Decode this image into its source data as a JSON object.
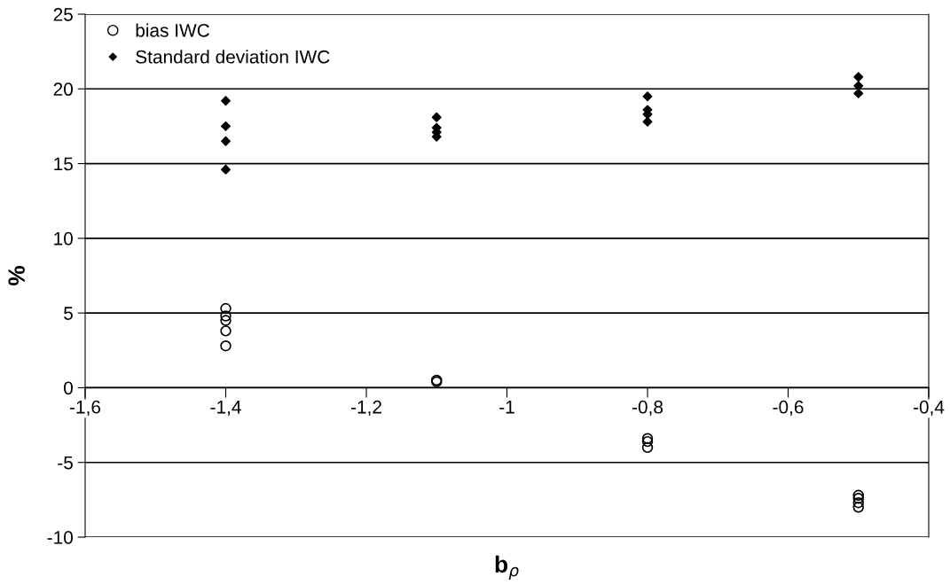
{
  "chart_data": {
    "type": "scatter",
    "xlabel": "b$_{ρ}$",
    "ylabel": "%",
    "xlim": [
      -1.6,
      -0.4
    ],
    "xticks": [
      {
        "value": -1.6,
        "label": "-1,6"
      },
      {
        "value": -1.4,
        "label": "-1,4"
      },
      {
        "value": -1.2,
        "label": "-1,2"
      },
      {
        "value": -1.0,
        "label": "-1"
      },
      {
        "value": -0.8,
        "label": "-0,8"
      },
      {
        "value": -0.6,
        "label": "-0,6"
      },
      {
        "value": -0.4,
        "label": "-0,4"
      }
    ],
    "ylim": [
      -10,
      25
    ],
    "yticks": [
      -10,
      -5,
      0,
      5,
      10,
      15,
      20,
      25
    ],
    "grid": "y",
    "legend": "top left",
    "series": [
      {
        "name": "bias IWC",
        "color": "#000000",
        "marker": "circle",
        "x": [
          -1.4,
          -1.4,
          -1.4,
          -1.4,
          -1.4,
          -1.1,
          -1.1,
          -0.8,
          -0.8,
          -0.8,
          -0.5,
          -0.5,
          -0.5,
          -0.5
        ],
        "values": [
          5.3,
          4.8,
          4.5,
          3.8,
          2.8,
          0.5,
          0.4,
          -3.4,
          -3.6,
          -4.0,
          -7.2,
          -7.4,
          -7.7,
          -8.0
        ]
      },
      {
        "name": "Standard deviation IWC",
        "color": "#000000",
        "marker": "diamond",
        "x": [
          -1.4,
          -1.4,
          -1.4,
          -1.4,
          -1.1,
          -1.1,
          -1.1,
          -1.1,
          -0.8,
          -0.8,
          -0.8,
          -0.8,
          -0.5,
          -0.5,
          -0.5
        ],
        "values": [
          19.2,
          17.5,
          16.5,
          14.6,
          18.1,
          17.4,
          17.1,
          16.8,
          19.5,
          18.6,
          18.3,
          17.8,
          20.8,
          20.2,
          19.7
        ]
      }
    ]
  }
}
